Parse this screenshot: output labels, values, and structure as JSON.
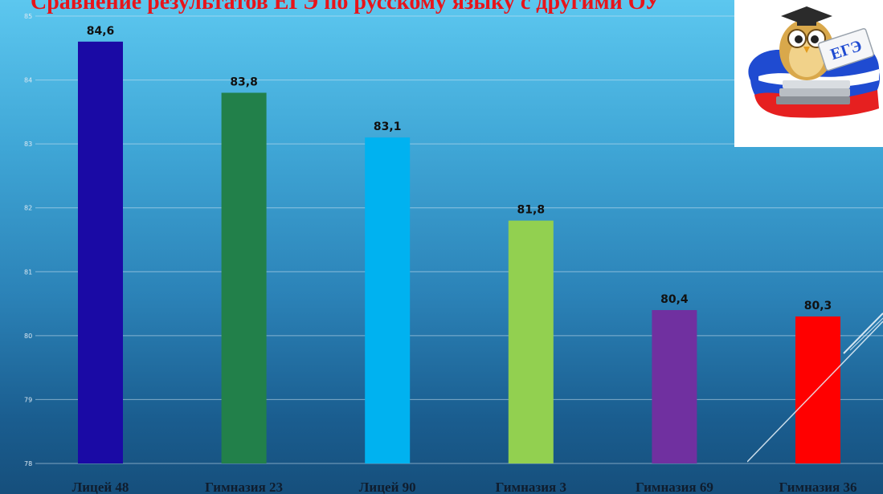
{
  "slide": {
    "title": "Сравнение результатов ЕГЭ по русскому языку с другими ОУ",
    "logo": {
      "text": "ЕГЭ",
      "icon": "owl-with-ege-book-icon"
    }
  },
  "chart_data": {
    "type": "bar",
    "title": "Сравнение результатов ЕГЭ по русскому языку с другими ОУ",
    "categories": [
      "Лицей 48",
      "Гимназия 23",
      "Лицей 90",
      "Гимназия 3",
      "Гимназия 69",
      "Гимназия 36"
    ],
    "values": [
      84.6,
      83.8,
      83.1,
      81.8,
      80.4,
      80.3
    ],
    "value_labels": [
      "84,6",
      "83,8",
      "83,1",
      "81,8",
      "80,4",
      "80,3"
    ],
    "colors": [
      "#1a0aa5",
      "#22804a",
      "#00b2f0",
      "#92d050",
      "#7030a0",
      "#ff0000"
    ],
    "ylim": [
      78,
      85
    ],
    "yticks": [
      "78",
      "79",
      "80",
      "81",
      "82",
      "83",
      "84",
      "85"
    ],
    "grid": true,
    "xlabel": "",
    "ylabel": ""
  }
}
